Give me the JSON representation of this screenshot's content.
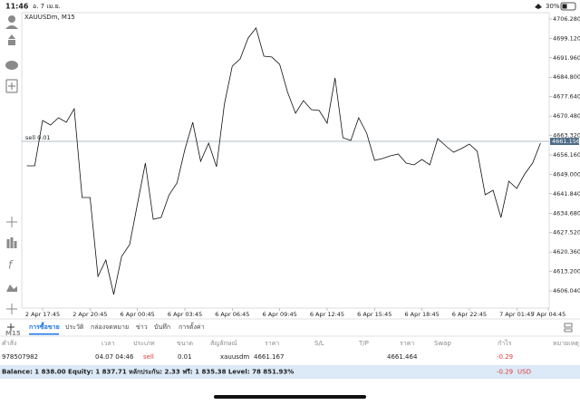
{
  "status_bar": {
    "time": "11:46",
    "date": "อ. 7 เม.ย.",
    "battery": "30%"
  },
  "sidebar": {
    "timeframe": "M15"
  },
  "chart_data": {
    "type": "line",
    "title": "XAUUSDm, M15",
    "categories": [
      null,
      null,
      "2 Apr 17:45",
      null,
      null,
      null,
      null,
      null,
      "2 Apr 20:45",
      null,
      null,
      null,
      null,
      null,
      "6 Apr 00:45",
      null,
      null,
      null,
      null,
      null,
      "6 Apr 03:45",
      null,
      null,
      null,
      null,
      null,
      "6 Apr 06:45",
      null,
      null,
      null,
      null,
      null,
      "6 Apr 09:45",
      null,
      null,
      null,
      null,
      null,
      "6 Apr 12:45",
      null,
      null,
      null,
      null,
      null,
      "6 Apr 15:45",
      null,
      null,
      null,
      null,
      null,
      "6 Apr 18:45",
      null,
      null,
      null,
      null,
      null,
      "6 Apr 22:45",
      null,
      null,
      null,
      null,
      null,
      "7 Apr 01:45",
      null,
      null,
      null,
      "7 Apr 04:45"
    ],
    "series": [
      {
        "name": "XAUUSDm",
        "color": "#111111",
        "values": [
          4652.15,
          4652.15,
          4668.86,
          4667.19,
          4669.86,
          4668.19,
          4673.2,
          4640.46,
          4640.46,
          4611.4,
          4617.41,
          4604.71,
          4618.75,
          4623.09,
          4638.12,
          4653.16,
          4632.44,
          4633.11,
          4641.46,
          4645.81,
          4658.17,
          4668.19,
          4653.83,
          4660.51,
          4651.82,
          4674.87,
          4688.91,
          4691.58,
          4699.26,
          4702.94,
          4692.58,
          4692.25,
          4689.57,
          4679.22,
          4671.53,
          4676.21,
          4672.87,
          4672.54,
          4667.86,
          4684.56,
          4662.51,
          4661.51,
          4669.86,
          4664.18,
          4654.16,
          4654.83,
          4655.83,
          4656.5,
          4653.16,
          4652.49,
          4654.49,
          4652.49,
          4662.18,
          4659.5,
          4657.17,
          4658.5,
          4660.17,
          4657.5,
          4641.46,
          4643.13,
          4633.11,
          4646.47,
          4643.8,
          4649.15,
          4653.16,
          4660.51,
          null
        ]
      }
    ],
    "ylim": [
      4599.7,
      4708.6
    ],
    "yticks": [
      {
        "value": 4706.28,
        "label": "4706.280"
      },
      {
        "value": 4699.12,
        "label": "4699.120"
      },
      {
        "value": 4691.96,
        "label": "4691.960"
      },
      {
        "value": 4684.8,
        "label": "4684.800"
      },
      {
        "value": 4677.64,
        "label": "4677.640"
      },
      {
        "value": 4670.48,
        "label": "4670.480"
      },
      {
        "value": 4663.32,
        "label": "4663.320"
      },
      {
        "value": 4656.16,
        "label": "4656.160"
      },
      {
        "value": 4649,
        "label": "4649.000"
      },
      {
        "value": 4641.84,
        "label": "4641.840"
      },
      {
        "value": 4634.68,
        "label": "4634.680"
      },
      {
        "value": 4627.52,
        "label": "4627.520"
      },
      {
        "value": 4620.36,
        "label": "4620.360"
      },
      {
        "value": 4613.2,
        "label": "4613.200"
      },
      {
        "value": 4606.04,
        "label": "4606.040"
      }
    ],
    "position_line": {
      "label": "sell 0.01",
      "value": 4661.167,
      "color": "#9aa9b3"
    },
    "last_price": 4661.156,
    "grid": false
  },
  "tabs": [
    "การซื้อขาย",
    "ประวัติ",
    "กล่องจดหมาย",
    "ข่าว",
    "บันทึก",
    "การตั้งค่า"
  ],
  "table": {
    "headers": [
      "คำสั่ง",
      "เวลา",
      "ประเภท",
      "ขนาด",
      "สัญลักษณ์",
      "ราคา",
      "S/L",
      "T/P",
      "ราคา",
      "Swap",
      "กำไร",
      "หมายเหตุ"
    ],
    "rows": [
      {
        "order": "978507982",
        "time": "04.07 04:46",
        "type": "sell",
        "volume": "0.01",
        "symbol": "xauusdm",
        "open_price": "4661.167",
        "price": "4661.464",
        "profit": "-0.29"
      }
    ]
  },
  "balance": {
    "text": "Balance: 1 838.00 Equity: 1 837.71 หลักประกัน: 2.33 ฟรี: 1 835.38 Level: 78 851.93%",
    "profit": "-0.29",
    "currency": "USD"
  }
}
